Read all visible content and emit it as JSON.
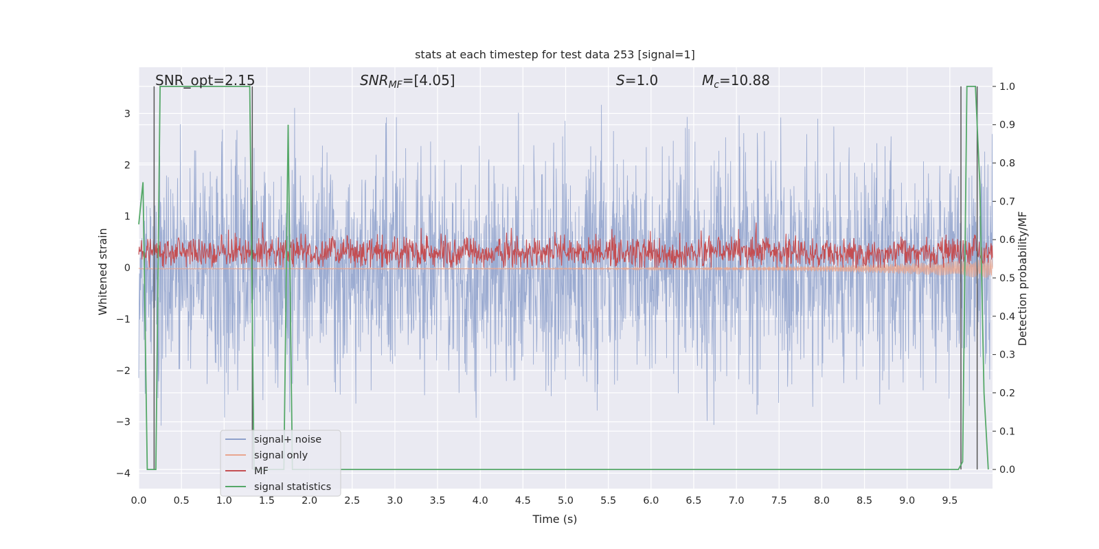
{
  "chart_data": {
    "type": "line",
    "title": "stats at each timestep for test data 253 [signal=1]",
    "xlabel": "Time (s)",
    "ylabel_left": "Whitened strain",
    "ylabel_right": "Detection probability/MF",
    "xlim": [
      0,
      10
    ],
    "ylim_left": [
      -4.3,
      3.9
    ],
    "ylim_right": [
      -0.05,
      1.05
    ],
    "x_ticks": [
      "0.0",
      "0.5",
      "1.0",
      "1.5",
      "2.0",
      "2.5",
      "3.0",
      "3.5",
      "4.0",
      "4.5",
      "5.0",
      "5.5",
      "6.0",
      "6.5",
      "7.0",
      "7.5",
      "8.0",
      "8.5",
      "9.0",
      "9.5"
    ],
    "y_ticks_left": [
      "3",
      "2",
      "1",
      "0",
      "−1",
      "−2",
      "−3",
      "−4"
    ],
    "y_ticks_right": [
      "1.0",
      "0.9",
      "0.8",
      "0.7",
      "0.6",
      "0.5",
      "0.4",
      "0.3",
      "0.2",
      "0.1",
      "0.0"
    ],
    "grid": true,
    "legend_position": "lower-left",
    "annotations": {
      "snr_opt": "SNR_opt=2.15",
      "snr_mf_sym": "SNR",
      "snr_mf_sub": "MF",
      "snr_mf_val": "=[4.05]",
      "s_sym": "S",
      "s_val": "=1.0",
      "mc_sym": "M",
      "mc_sub": "c",
      "mc_val": "=10.88"
    },
    "series": [
      {
        "name": "signal+ noise",
        "color": "#8da0cb",
        "axis": "left",
        "description_range": [
          -4.0,
          3.5
        ]
      },
      {
        "name": "signal only",
        "color": "#e8a58e",
        "axis": "left"
      },
      {
        "name": "MF",
        "color": "#c44e52",
        "axis": "left"
      },
      {
        "name": "signal statistics",
        "color": "#55a868",
        "axis": "right",
        "x": [
          0.0,
          0.05,
          0.1,
          0.12,
          0.17,
          0.2,
          0.25,
          0.3,
          1.3,
          1.35,
          1.4,
          1.6,
          1.65,
          1.7,
          1.75,
          1.8,
          1.85,
          1.9,
          9.6,
          9.65,
          9.7,
          9.8,
          9.85,
          9.9,
          9.95
        ],
        "y": [
          0.64,
          0.75,
          0.0,
          0.0,
          0.0,
          0.0,
          1.0,
          1.0,
          1.0,
          0.0,
          0.0,
          0.0,
          0.0,
          0.0,
          0.9,
          0.0,
          0.0,
          0.0,
          0.0,
          0.02,
          1.0,
          1.0,
          0.75,
          0.2,
          0.0
        ]
      }
    ],
    "vertical_markers": [
      0.18,
      1.33,
      9.63,
      9.82
    ]
  },
  "legend": {
    "items": [
      "signal+ noise",
      "signal only",
      "MF",
      "signal statistics"
    ]
  }
}
